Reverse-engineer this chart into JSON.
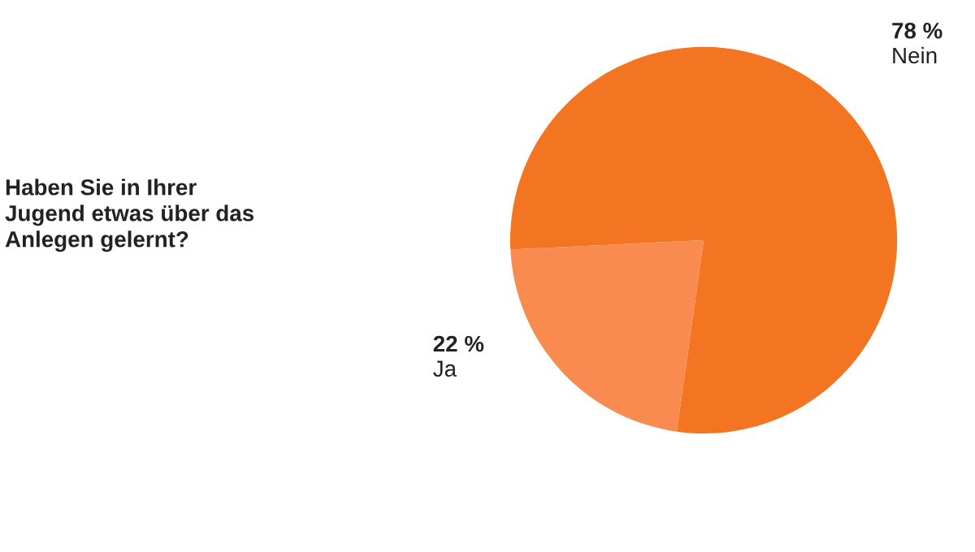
{
  "chart_data": {
    "type": "pie",
    "title": "Haben Sie in Ihrer\nJugend etwas über das\nAnlegen gelernt?",
    "categories": [
      "Nein",
      "Ja"
    ],
    "values": [
      78,
      22
    ],
    "colors": [
      "#f47521",
      "#f98b50"
    ],
    "value_labels": [
      "78 %",
      "22 %"
    ]
  }
}
